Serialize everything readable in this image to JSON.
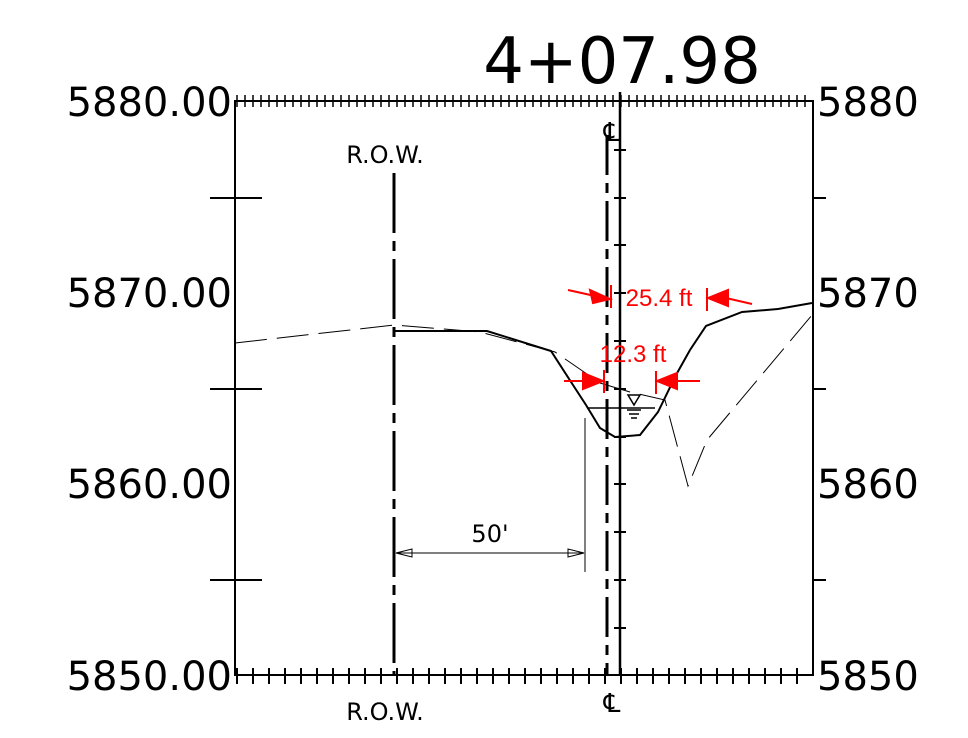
{
  "station": "4+07.98",
  "elevation_labels_left": [
    "5880.00",
    "5870.00",
    "5860.00",
    "5850.00"
  ],
  "elevation_labels_right": [
    "5880",
    "5870",
    "5860",
    "5850"
  ],
  "row_label_top": "R.O.W.",
  "row_label_bottom": "R.O.W.",
  "centerline_symbol_top": "℄",
  "centerline_symbol_bottom": "℄",
  "offset_dimension": "50'",
  "top_width_dimension": "25.4 ft",
  "water_width_dimension": "12.3 ft",
  "colors": {
    "linework": "#000000",
    "dimensions": "#ff0000"
  }
}
